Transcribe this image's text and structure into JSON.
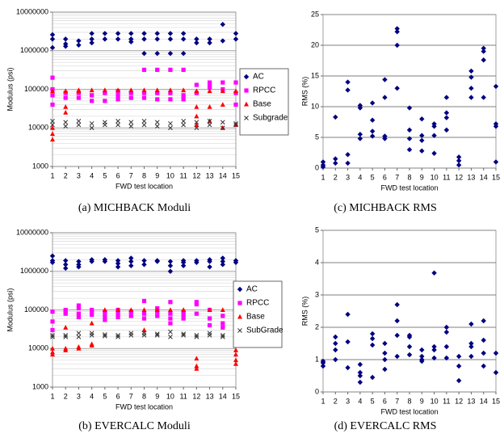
{
  "chart_data": [
    {
      "type": "scatter",
      "caption": "(a) MICHBACK Moduli",
      "xlabel": "FWD test location",
      "ylabel": "Modulus (psi)",
      "log_y": true,
      "grid": true,
      "legend": "right",
      "xlim": [
        1,
        15
      ],
      "xticks": [
        1,
        2,
        3,
        4,
        5,
        6,
        7,
        8,
        9,
        10,
        11,
        12,
        13,
        14,
        15
      ],
      "ylim": [
        1000,
        10000000
      ],
      "yticks": [
        1000,
        10000,
        100000,
        1000000,
        10000000
      ],
      "series": [
        {
          "name": "AC",
          "color": "#000080",
          "marker": "diamond",
          "x": [
            1,
            1,
            1,
            2,
            2,
            2,
            3,
            3,
            4,
            4,
            4,
            5,
            5,
            6,
            6,
            7,
            7,
            7,
            8,
            8,
            8,
            9,
            9,
            9,
            10,
            10,
            10,
            11,
            11,
            11,
            12,
            12,
            13,
            13,
            14,
            14,
            15,
            15
          ],
          "values": [
            2600000,
            2000000,
            1200000,
            2000000,
            1500000,
            1300000,
            1800000,
            1400000,
            2800000,
            2000000,
            1600000,
            2800000,
            2000000,
            2800000,
            2000000,
            2800000,
            2000000,
            1700000,
            2800000,
            2000000,
            850000,
            2800000,
            2000000,
            850000,
            2800000,
            2000000,
            850000,
            2800000,
            2000000,
            850000,
            2000000,
            1600000,
            2000000,
            1600000,
            4800000,
            1800000,
            2800000,
            2000000
          ]
        },
        {
          "name": "RPCC",
          "color": "#ff00ff",
          "marker": "square",
          "x": [
            1,
            1,
            1,
            1,
            2,
            2,
            3,
            3,
            4,
            4,
            5,
            5,
            6,
            6,
            6,
            7,
            7,
            8,
            8,
            8,
            9,
            9,
            9,
            10,
            10,
            10,
            11,
            11,
            11,
            12,
            12,
            13,
            13,
            13,
            14,
            14,
            15,
            15,
            15
          ],
          "values": [
            200000,
            100000,
            70000,
            40000,
            80000,
            60000,
            80000,
            60000,
            70000,
            50000,
            80000,
            50000,
            90000,
            70000,
            55000,
            80000,
            60000,
            320000,
            80000,
            60000,
            320000,
            80000,
            55000,
            320000,
            80000,
            55000,
            320000,
            70000,
            55000,
            130000,
            80000,
            150000,
            130000,
            110000,
            150000,
            100000,
            150000,
            80000,
            40000
          ]
        },
        {
          "name": "Base",
          "color": "#ff0000",
          "marker": "triangle",
          "x": [
            1,
            1,
            1,
            1,
            2,
            2,
            2,
            3,
            3,
            4,
            5,
            6,
            7,
            8,
            9,
            10,
            11,
            12,
            12,
            12,
            12,
            13,
            13,
            13,
            14,
            14,
            14,
            15,
            15
          ],
          "values": [
            90000,
            10000,
            7000,
            5000,
            90000,
            35000,
            25000,
            95000,
            90000,
            95000,
            95000,
            95000,
            95000,
            95000,
            95000,
            95000,
            95000,
            90000,
            35000,
            20000,
            12000,
            90000,
            35000,
            15000,
            90000,
            40000,
            10000,
            90000,
            12000
          ]
        },
        {
          "name": "Subgrade",
          "color": "#333333",
          "marker": "cross",
          "x": [
            1,
            1,
            2,
            2,
            3,
            3,
            4,
            4,
            5,
            5,
            6,
            6,
            7,
            7,
            8,
            8,
            9,
            9,
            10,
            10,
            11,
            11,
            12,
            12,
            13,
            13,
            14,
            14,
            15,
            15
          ],
          "values": [
            15000,
            12000,
            14000,
            11000,
            15000,
            12000,
            13000,
            10000,
            14000,
            12000,
            15000,
            12000,
            14000,
            11000,
            15000,
            12000,
            14000,
            11000,
            13000,
            10000,
            15000,
            12000,
            14000,
            10000,
            15000,
            12000,
            14000,
            10000,
            13000,
            12000
          ]
        }
      ]
    },
    {
      "type": "scatter",
      "caption": "(b) EVERCALC Moduli",
      "xlabel": "FWD test location",
      "ylabel": "Modulus (psi)",
      "log_y": true,
      "grid": true,
      "legend": "right",
      "xlim": [
        1,
        15
      ],
      "xticks": [
        1,
        2,
        3,
        4,
        5,
        6,
        7,
        8,
        9,
        10,
        11,
        12,
        13,
        14,
        15
      ],
      "ylim": [
        1000,
        10000000
      ],
      "yticks": [
        1000,
        10000,
        100000,
        1000000,
        10000000
      ],
      "series": [
        {
          "name": "AC",
          "color": "#000080",
          "marker": "diamond",
          "x": [
            1,
            1,
            1,
            2,
            2,
            2,
            3,
            3,
            3,
            4,
            4,
            5,
            5,
            6,
            6,
            6,
            7,
            7,
            7,
            8,
            8,
            9,
            9,
            10,
            10,
            10,
            11,
            11,
            11,
            12,
            12,
            13,
            13,
            13,
            14,
            14,
            14,
            15,
            15
          ],
          "values": [
            2500000,
            1900000,
            1700000,
            1900000,
            1500000,
            1200000,
            1800000,
            1500000,
            1300000,
            2000000,
            1800000,
            2000000,
            1800000,
            1900000,
            1600000,
            1300000,
            2200000,
            1800000,
            1400000,
            1900000,
            1500000,
            1900000,
            1800000,
            1800000,
            1400000,
            1000000,
            1900000,
            1700000,
            1400000,
            1900000,
            1700000,
            2000000,
            1800000,
            1300000,
            2200000,
            1800000,
            1500000,
            1900000,
            1700000
          ]
        },
        {
          "name": "RPCC",
          "color": "#ff00ff",
          "marker": "square",
          "x": [
            1,
            1,
            1,
            2,
            2,
            2,
            3,
            3,
            3,
            3,
            4,
            4,
            4,
            5,
            5,
            5,
            6,
            6,
            6,
            7,
            7,
            8,
            8,
            8,
            9,
            9,
            9,
            10,
            10,
            10,
            10,
            11,
            11,
            11,
            12,
            12,
            12,
            13,
            13,
            13,
            14,
            14,
            14,
            15,
            15,
            15,
            15
          ],
          "values": [
            90000,
            50000,
            30000,
            100000,
            90000,
            80000,
            130000,
            110000,
            80000,
            65000,
            100000,
            90000,
            75000,
            90000,
            70000,
            55000,
            100000,
            80000,
            65000,
            90000,
            70000,
            170000,
            80000,
            60000,
            110000,
            90000,
            70000,
            160000,
            80000,
            60000,
            45000,
            90000,
            75000,
            60000,
            160000,
            140000,
            80000,
            100000,
            60000,
            40000,
            70000,
            45000,
            35000,
            180000,
            150000,
            120000,
            50000
          ]
        },
        {
          "name": "Base",
          "color": "#ff0000",
          "marker": "triangle",
          "x": [
            1,
            1,
            1,
            2,
            2,
            2,
            3,
            3,
            4,
            4,
            4,
            5,
            6,
            7,
            8,
            8,
            9,
            10,
            11,
            12,
            12,
            12,
            13,
            14,
            15,
            15,
            15,
            15
          ],
          "values": [
            10000,
            8000,
            7000,
            35000,
            10000,
            9000,
            11000,
            10000,
            45000,
            13000,
            12000,
            100000,
            100000,
            100000,
            100000,
            30000,
            100000,
            100000,
            100000,
            5500,
            3500,
            3000,
            100000,
            100000,
            9000,
            7000,
            5000,
            4000
          ]
        },
        {
          "name": "SubGrade",
          "color": "#333333",
          "marker": "cross",
          "x": [
            1,
            1,
            2,
            2,
            3,
            3,
            4,
            4,
            5,
            5,
            6,
            6,
            7,
            7,
            8,
            8,
            9,
            9,
            10,
            10,
            11,
            11,
            12,
            12,
            13,
            13,
            14,
            14,
            15,
            15
          ],
          "values": [
            22000,
            20000,
            22000,
            20000,
            25000,
            20000,
            25000,
            22000,
            23000,
            21000,
            22000,
            20000,
            25000,
            22000,
            25000,
            22000,
            24000,
            22000,
            27000,
            20000,
            24000,
            22000,
            22000,
            20000,
            25000,
            22000,
            22000,
            20000,
            25000,
            20000
          ]
        }
      ]
    },
    {
      "type": "scatter",
      "caption": "(c) MICHBACK RMS",
      "xlabel": "FWD test location",
      "ylabel": "RMS (%)",
      "log_y": false,
      "grid": true,
      "xlim": [
        1,
        15
      ],
      "xticks": [
        1,
        2,
        3,
        4,
        5,
        6,
        7,
        8,
        9,
        10,
        11,
        12,
        13,
        14,
        15
      ],
      "ylim": [
        0,
        25
      ],
      "yticks": [
        0,
        5,
        10,
        15,
        20,
        25
      ],
      "series": [
        {
          "color": "#000080",
          "marker": "diamond",
          "x": [
            1,
            1,
            1,
            2,
            2,
            2,
            3,
            3,
            3,
            3,
            4,
            4,
            4,
            4,
            5,
            5,
            5,
            5,
            6,
            6,
            6,
            6,
            7,
            7,
            7,
            7,
            8,
            8,
            8,
            8,
            9,
            9,
            9,
            9,
            10,
            10,
            10,
            10,
            11,
            11,
            11,
            11,
            12,
            12,
            12,
            13,
            13,
            13,
            13,
            14,
            14,
            14,
            14,
            15,
            15,
            15,
            15
          ],
          "values": [
            1,
            0.5,
            0.2,
            8.3,
            1.5,
            0.8,
            14,
            12.7,
            2.2,
            0.8,
            10.2,
            9.8,
            5.5,
            4.8,
            10.6,
            7.8,
            6,
            5.2,
            14.4,
            11.5,
            5.2,
            4.8,
            22.7,
            22.2,
            20,
            13,
            9.8,
            6.2,
            4.8,
            3,
            8,
            5.3,
            4.5,
            2.8,
            7.2,
            6.8,
            5.3,
            2.4,
            11.5,
            9,
            8.2,
            6.2,
            1.8,
            1.2,
            0.5,
            15.8,
            14.8,
            13,
            11.5,
            19.5,
            19,
            17.6,
            11.5,
            13.3,
            7.2,
            6.8,
            1
          ]
        }
      ]
    },
    {
      "type": "scatter",
      "caption": "(d) EVERCALC RMS",
      "xlabel": "FWD test location",
      "ylabel": "RMS (%)",
      "log_y": false,
      "grid": true,
      "xlim": [
        1,
        15
      ],
      "xticks": [
        1,
        2,
        3,
        4,
        5,
        6,
        7,
        8,
        9,
        10,
        11,
        12,
        13,
        14,
        15
      ],
      "ylim": [
        0,
        5
      ],
      "yticks": [
        0,
        1,
        2,
        3,
        4,
        5
      ],
      "series": [
        {
          "color": "#000080",
          "marker": "diamond",
          "x": [
            1,
            1,
            1,
            2,
            2,
            2,
            2,
            3,
            3,
            3,
            4,
            4,
            4,
            4,
            5,
            5,
            5,
            5,
            6,
            6,
            6,
            6,
            7,
            7,
            7,
            7,
            8,
            8,
            8,
            8,
            9,
            9,
            9,
            9,
            10,
            10,
            10,
            10,
            11,
            11,
            11,
            11,
            12,
            12,
            12,
            13,
            13,
            13,
            13,
            14,
            14,
            14,
            14,
            15,
            15
          ],
          "values": [
            0.95,
            0.9,
            0.8,
            1.7,
            1.5,
            1.3,
            1,
            2.4,
            1.55,
            0.75,
            0.85,
            0.6,
            0.5,
            0.3,
            1.8,
            1.65,
            1.45,
            0.45,
            1.5,
            1.2,
            1,
            0.7,
            2.7,
            2.2,
            1.75,
            1.1,
            1.75,
            1.7,
            1.4,
            1.15,
            1.3,
            1.1,
            1,
            0.95,
            3.68,
            1.4,
            1.3,
            1.05,
            2,
            1.85,
            1.4,
            1.05,
            1.1,
            0.8,
            0.35,
            2.1,
            1.5,
            1.4,
            1.1,
            2.2,
            1.6,
            1.2,
            0.8,
            1.2,
            0.6
          ]
        }
      ]
    }
  ]
}
